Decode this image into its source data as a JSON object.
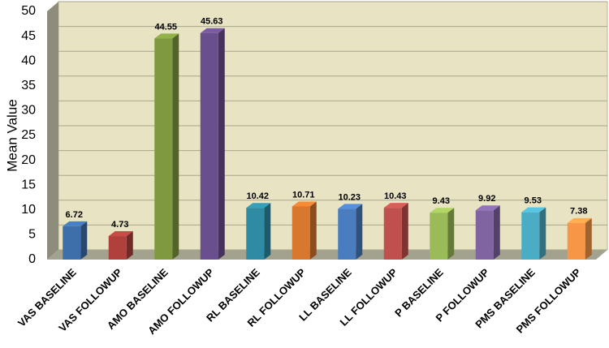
{
  "chart_data": {
    "type": "bar3d",
    "y_label": "Mean Value",
    "categories": [
      "VAS BASELINE",
      "VAS FOLLOWUP",
      "AMO BASELINE",
      "AMO FOLLOWUP",
      "RL BASELINE",
      "RL FOLLOWUP",
      "LL BASELINE",
      "LL FOLLOWUP",
      "P BASELINE",
      "P FOLLOWUP",
      "PMS BASELINE",
      "PMS FOLLOWUP"
    ],
    "values": [
      6.72,
      4.73,
      44.55,
      45.63,
      10.42,
      10.71,
      10.23,
      10.43,
      9.43,
      9.92,
      9.53,
      7.38
    ],
    "colors": [
      "#3f6faa",
      "#b0403c",
      "#7f9a3e",
      "#6a4f8e",
      "#2f8ba3",
      "#d8772e",
      "#4a7cc0",
      "#c0504d",
      "#9bbb59",
      "#8064a2",
      "#4bacc6",
      "#f79646"
    ],
    "ylim": [
      0,
      50
    ],
    "yticks": [
      0,
      5,
      10,
      15,
      20,
      25,
      30,
      35,
      40,
      45,
      50
    ],
    "grid": true
  }
}
